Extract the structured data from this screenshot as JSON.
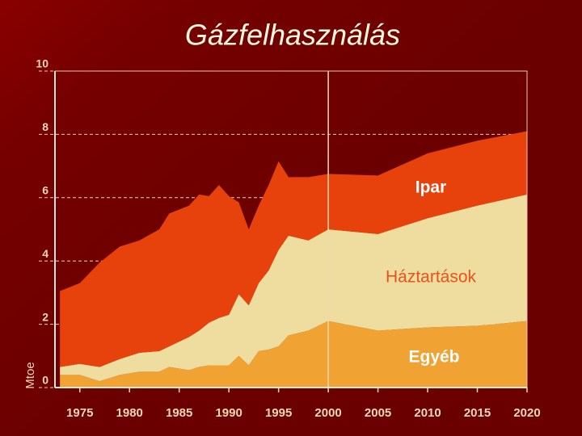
{
  "chart_data": {
    "type": "stacked_area",
    "title": "Gázfelhasználás",
    "y_label": "Mtoe",
    "x": [
      1973,
      1975,
      1977,
      1979,
      1981,
      1983,
      1984,
      1986,
      1987,
      1988,
      1989,
      1990,
      1991,
      1992,
      1993,
      1994,
      1995,
      1996,
      1998,
      2000,
      2005,
      2010,
      2015,
      2020
    ],
    "series": [
      {
        "name": "Egyéb",
        "color": "#f0a232",
        "values": [
          0.4,
          0.4,
          0.2,
          0.4,
          0.5,
          0.5,
          0.65,
          0.55,
          0.65,
          0.7,
          0.7,
          0.7,
          1.0,
          0.7,
          1.15,
          1.2,
          1.3,
          1.65,
          1.8,
          2.1,
          1.8,
          1.9,
          1.95,
          2.1
        ]
      },
      {
        "name": "Háztartások",
        "color": "#eedd9e",
        "values": [
          0.25,
          0.35,
          0.45,
          0.5,
          0.6,
          0.65,
          0.65,
          1.05,
          1.15,
          1.35,
          1.5,
          1.6,
          1.95,
          1.9,
          2.15,
          2.5,
          3.05,
          3.15,
          2.85,
          2.9,
          3.05,
          3.45,
          3.8,
          4.0
        ]
      },
      {
        "name": "Ipar",
        "color": "#e8420c",
        "values": [
          2.4,
          2.55,
          3.3,
          3.55,
          3.55,
          3.85,
          4.2,
          4.15,
          4.3,
          4.0,
          4.2,
          3.75,
          2.9,
          2.4,
          2.45,
          2.7,
          2.8,
          1.85,
          2.0,
          1.75,
          1.85,
          2.05,
          2.05,
          2.0
        ]
      }
    ],
    "xlim": [
      1972.5,
      2020
    ],
    "xticks": [
      1975,
      1980,
      1985,
      1990,
      1995,
      2000,
      2005,
      2010,
      2015,
      2020
    ],
    "ylim": [
      0,
      10
    ],
    "yticks": [
      0,
      2,
      4,
      6,
      8,
      10
    ],
    "grid": true
  }
}
